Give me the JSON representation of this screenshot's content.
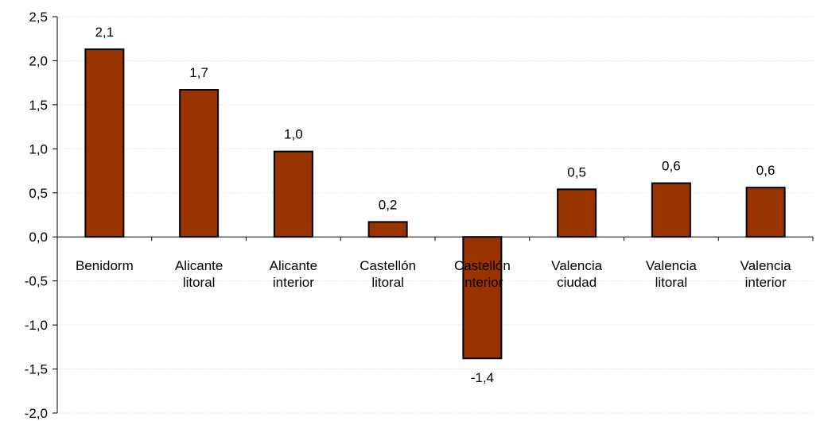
{
  "chart_data": {
    "type": "bar",
    "title": "",
    "xlabel": "",
    "ylabel": "",
    "categories": [
      [
        "Benidorm"
      ],
      [
        "Alicante",
        "litoral"
      ],
      [
        "Alicante",
        "interior"
      ],
      [
        "Castellón",
        "litoral"
      ],
      [
        "Castellón",
        "interior"
      ],
      [
        "Valencia",
        "ciudad"
      ],
      [
        "Valencia",
        "litoral"
      ],
      [
        "Valencia",
        "interior"
      ]
    ],
    "values": [
      2.13,
      1.67,
      0.97,
      0.17,
      -1.38,
      0.54,
      0.61,
      0.56
    ],
    "value_labels": [
      "2,1",
      "1,7",
      "1,0",
      "0,2",
      "-1,4",
      "0,5",
      "0,6",
      "0,6"
    ],
    "ylim": [
      -2.0,
      2.5
    ],
    "yticks": [
      2.5,
      2.0,
      1.5,
      1.0,
      0.5,
      0.0,
      -0.5,
      -1.0,
      -1.5,
      -2.0
    ],
    "ytick_labels": [
      "2,5",
      "2,0",
      "1,5",
      "1,0",
      "0,5",
      "0,0",
      "-0,5",
      "-1,0",
      "-1,5",
      "-2,0"
    ],
    "grid": true,
    "legend": "none",
    "colors": {
      "bar_fill": "#993300",
      "bar_stroke": "#000000",
      "grid": "#d9d9d9",
      "axis": "#000000"
    }
  }
}
